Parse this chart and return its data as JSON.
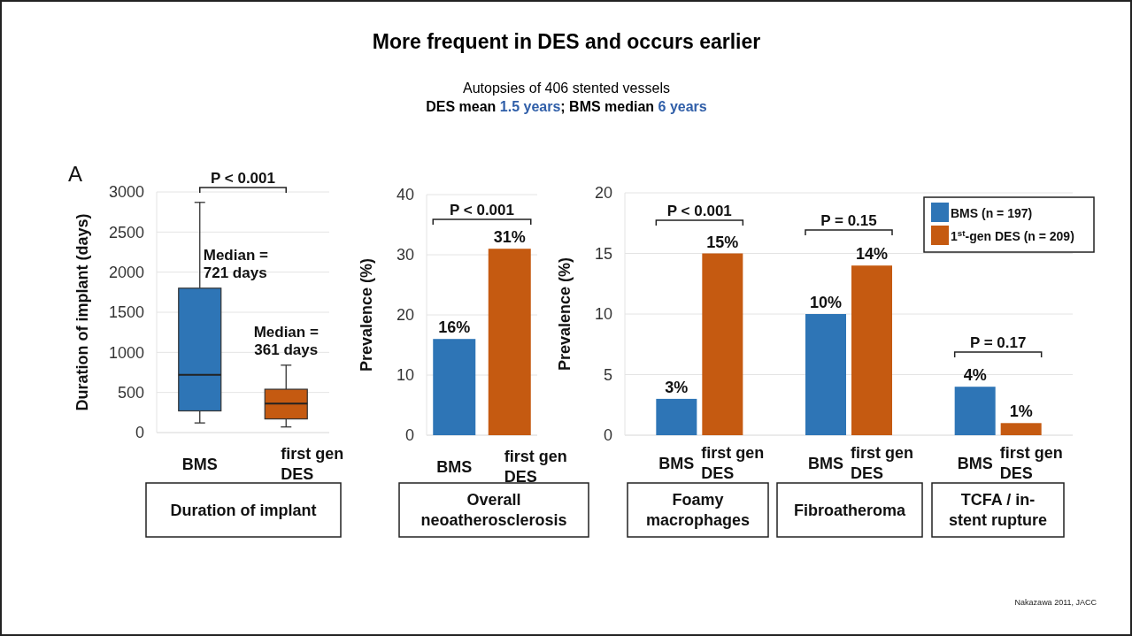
{
  "chart_data": [
    {
      "type": "other",
      "title": "More frequent in DES and occurs earlier",
      "subtitle": "Autopsies of 406 stented vessels\nDES mean 1.5 years; BMS median 6 years",
      "annotations": [
        "Nakazawa 2011, JACC"
      ]
    },
    {
      "type": "box",
      "categories": [
        "BMS",
        "first gen DES"
      ],
      "boxes": [
        {
          "low": 120,
          "q1": 270,
          "median": 721,
          "q3": 1800,
          "high": 2870
        },
        {
          "low": 70,
          "q1": 170,
          "median": 361,
          "q3": 540,
          "high": 840
        }
      ],
      "colors": [
        "#2e75b6",
        "#c55a11"
      ],
      "ylabel": "Duration of implant (days)",
      "xlabel": "Duration of implant",
      "ylim": [
        0,
        3000
      ],
      "yticks": [
        0,
        500,
        1000,
        1500,
        2000,
        2500,
        3000
      ],
      "grid": "y",
      "annotations": [
        "A",
        "P < 0.001",
        "Median = 721 days",
        "Median = 361 days"
      ]
    },
    {
      "type": "bar",
      "categories": [
        "BMS",
        "first gen DES"
      ],
      "values": [
        16,
        31
      ],
      "colors": [
        "#2e75b6",
        "#c55a11"
      ],
      "value_labels": [
        "16%",
        "31%"
      ],
      "ylabel": "Prevalence (%)",
      "xlabel": "Overall neoatherosclerosis",
      "ylim": [
        0,
        40
      ],
      "yticks": [
        0,
        10,
        20,
        30,
        40
      ],
      "grid": "y",
      "annotations": [
        "P < 0.001"
      ]
    },
    {
      "type": "bar",
      "categories": [
        "Foamy macrophages",
        "Fibroatheroma",
        "TCFA / in-stent rupture"
      ],
      "series": [
        {
          "name": "BMS (n = 197)",
          "color": "#2e75b6",
          "values": [
            3,
            10,
            4
          ],
          "value_labels": [
            "3%",
            "10%",
            "4%"
          ]
        },
        {
          "name": "1$^{st}$-gen DES (n = 209)",
          "color": "#c55a11",
          "values": [
            15,
            14,
            1
          ],
          "value_labels": [
            "15%",
            "14%",
            "1%"
          ]
        }
      ],
      "ylabel": "Prevalence (%)",
      "ylim": [
        0,
        20
      ],
      "yticks": [
        0,
        5,
        10,
        15,
        20
      ],
      "grid": "y",
      "legend": "top right",
      "annotations": [
        "P < 0.001",
        "P = 0.15",
        "P = 0.17",
        "BMS",
        "first gen DES",
        "BMS",
        "first gen DES",
        "BMS",
        "first gen DES"
      ]
    }
  ]
}
